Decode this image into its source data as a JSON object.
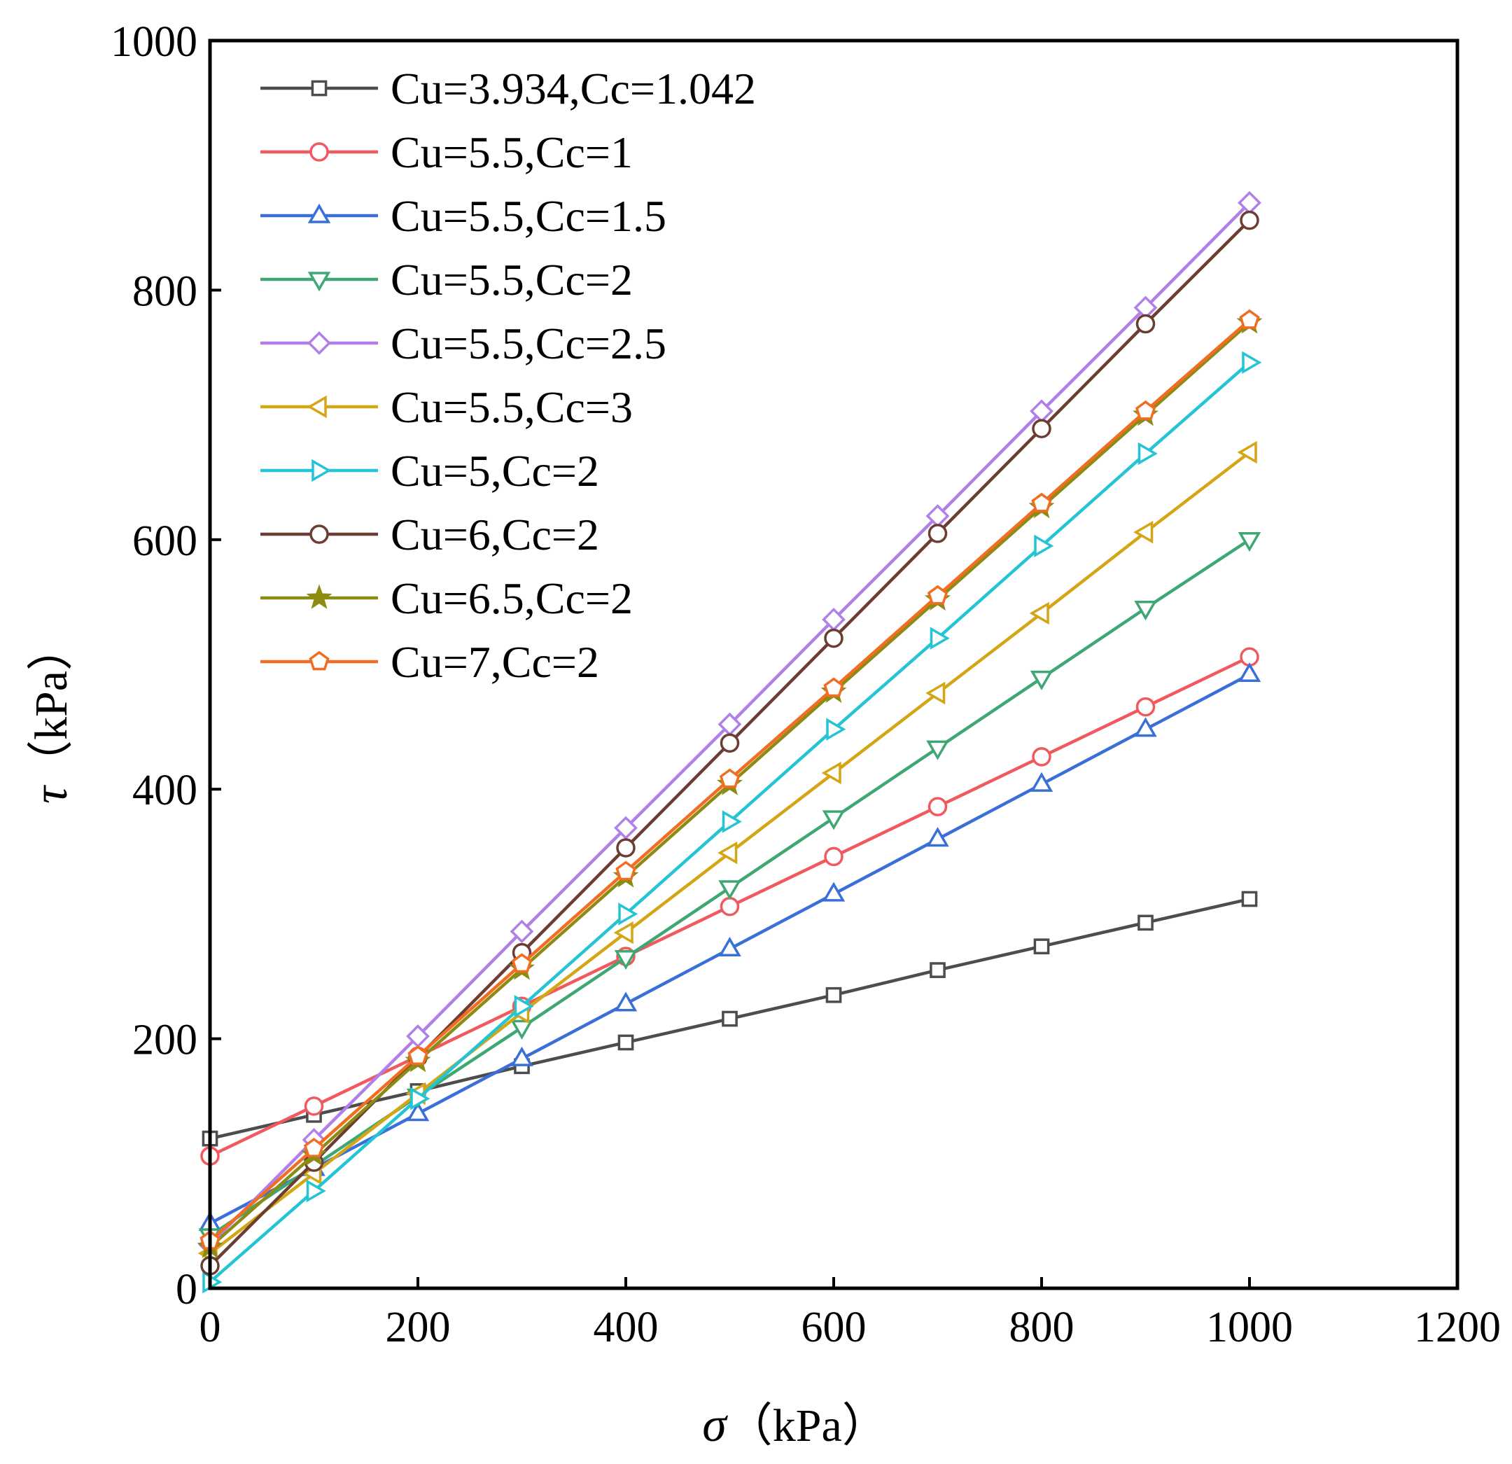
{
  "chart_data": {
    "type": "line",
    "title": "",
    "xlabel": {
      "symbol": "σ",
      "unit": "（kPa）"
    },
    "ylabel": {
      "symbol": "τ",
      "unit": "（kPa）"
    },
    "xlim": [
      0,
      1200
    ],
    "ylim": [
      0,
      1000
    ],
    "xticks": [
      0,
      200,
      400,
      600,
      800,
      1000,
      1200
    ],
    "yticks": [
      0,
      200,
      400,
      600,
      800,
      1000
    ],
    "grid": false,
    "legend_position": "top-left",
    "x": [
      0,
      100,
      200,
      300,
      400,
      500,
      600,
      700,
      800,
      900,
      1000
    ],
    "series": [
      {
        "name": "Cu=3.934,Cc=1.042",
        "color": "#4d4d4d",
        "marker": "square",
        "values": [
          120,
          139,
          158,
          178,
          197,
          216,
          235,
          255,
          274,
          293,
          312
        ]
      },
      {
        "name": "Cu=5.5,Cc=1",
        "color": "#f0595e",
        "marker": "circle",
        "values": [
          106,
          146,
          186,
          226,
          266,
          306,
          346,
          386,
          426,
          466,
          506
        ]
      },
      {
        "name": "Cu=5.5,Cc=1.5",
        "color": "#3a6fd8",
        "marker": "triangle-up",
        "values": [
          52,
          96,
          140,
          184,
          228,
          272,
          316,
          360,
          404,
          448,
          492
        ]
      },
      {
        "name": "Cu=5.5,Cc=2",
        "color": "#3fa773",
        "marker": "triangle-down",
        "values": [
          42,
          98,
          154,
          209,
          265,
          321,
          377,
          433,
          489,
          545,
          600
        ]
      },
      {
        "name": "Cu=5.5,Cc=2.5",
        "color": "#b080e8",
        "marker": "diamond",
        "values": [
          35,
          119,
          202,
          286,
          369,
          452,
          536,
          619,
          703,
          786,
          870
        ]
      },
      {
        "name": "Cu=5.5,Cc=3",
        "color": "#d4a514",
        "marker": "triangle-left",
        "values": [
          28,
          92,
          156,
          221,
          285,
          349,
          413,
          477,
          541,
          606,
          670
        ]
      },
      {
        "name": "Cu=5,Cc=2",
        "color": "#25c4d4",
        "marker": "triangle-right",
        "values": [
          5,
          78,
          152,
          226,
          300,
          374,
          448,
          521,
          595,
          669,
          742
        ]
      },
      {
        "name": "Cu=6,Cc=2",
        "color": "#6b3d33",
        "marker": "circle",
        "values": [
          18,
          101,
          185,
          269,
          353,
          437,
          521,
          605,
          689,
          773,
          856
        ]
      },
      {
        "name": "Cu=6.5,Cc=2",
        "color": "#8c8c14",
        "marker": "star",
        "values": [
          33,
          107,
          182,
          256,
          330,
          404,
          478,
          552,
          626,
          700,
          774
        ]
      },
      {
        "name": "Cu=7,Cc=2",
        "color": "#f26d21",
        "marker": "pentagon",
        "values": [
          38,
          112,
          186,
          260,
          334,
          408,
          481,
          555,
          629,
          703,
          776
        ]
      }
    ]
  }
}
